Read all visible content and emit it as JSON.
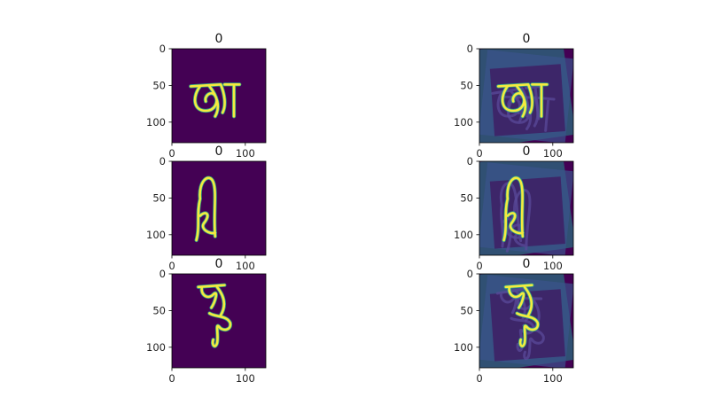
{
  "chart_data": [
    {
      "type": "image",
      "panel": "original",
      "title": "0",
      "xticks": [
        "0",
        "100"
      ],
      "yticks": [
        "0",
        "50",
        "100"
      ],
      "xlim": [
        0,
        128
      ],
      "ylim": [
        128,
        0
      ],
      "colormap": "viridis",
      "image": "handwritten Bengali character আ"
    },
    {
      "type": "image",
      "panel": "augmented",
      "title": "0",
      "xticks": [
        "0",
        "100"
      ],
      "yticks": [
        "0",
        "50",
        "100"
      ],
      "xlim": [
        0,
        128
      ],
      "ylim": [
        128,
        0
      ],
      "colormap": "viridis",
      "image": "rotated, overlaid copies of handwritten Bengali character আ"
    },
    {
      "type": "image",
      "panel": "original",
      "title": "0",
      "xticks": [
        "0",
        "100"
      ],
      "yticks": [
        "0",
        "50",
        "100"
      ],
      "xlim": [
        0,
        128
      ],
      "ylim": [
        128,
        0
      ],
      "colormap": "viridis",
      "image": "handwritten Bengali character"
    },
    {
      "type": "image",
      "panel": "augmented",
      "title": "0",
      "xticks": [
        "0",
        "100"
      ],
      "yticks": [
        "0",
        "50",
        "100"
      ],
      "xlim": [
        0,
        128
      ],
      "ylim": [
        128,
        0
      ],
      "colormap": "viridis",
      "image": "rotated, overlaid copies of handwritten Bengali character"
    },
    {
      "type": "image",
      "panel": "original",
      "title": "0",
      "xticks": [
        "0",
        "100"
      ],
      "yticks": [
        "0",
        "50",
        "100"
      ],
      "xlim": [
        0,
        128
      ],
      "ylim": [
        128,
        0
      ],
      "colormap": "viridis",
      "image": "handwritten Bengali character"
    },
    {
      "type": "image",
      "panel": "augmented",
      "title": "0",
      "xticks": [
        "0",
        "100"
      ],
      "yticks": [
        "0",
        "50",
        "100"
      ],
      "xlim": [
        0,
        128
      ],
      "ylim": [
        128,
        0
      ],
      "colormap": "viridis",
      "image": "rotated, overlaid copies of handwritten Bengali character"
    }
  ],
  "colors": {
    "background": "#440154",
    "stroke": "#f5ea3f",
    "halo": "#2fb58a",
    "aug_mid": "#3b528b",
    "aug_light": "#21918c"
  }
}
